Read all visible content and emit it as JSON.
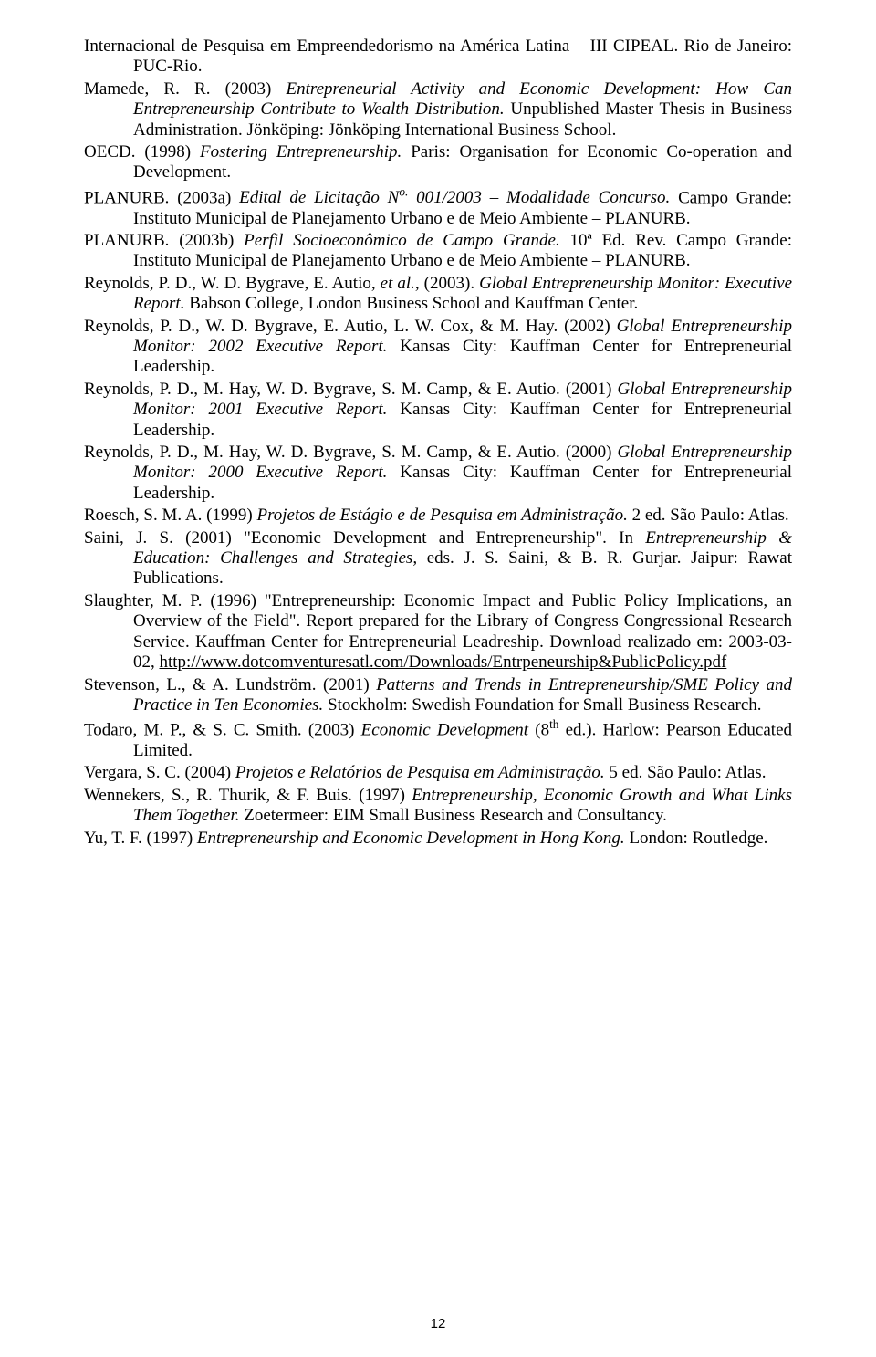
{
  "page_number": "12",
  "font": {
    "body_family": "Times New Roman",
    "body_size_pt": 14,
    "page_num_family": "Arial",
    "page_num_size_pt": 11,
    "color": "#000000",
    "background": "#ffffff"
  },
  "references": [
    {
      "pre": "Internacional de Pesquisa em Empreendedorismo na América Latina – III CIPEAL. Rio de Janeiro: PUC-Rio."
    },
    {
      "pre": "Mamede, R. R. (2003) ",
      "ital": "Entrepreneurial Activity and Economic Development: How Can Entrepreneurship Contribute to Wealth Distribution.",
      "post": " Unpublished Master Thesis in Business Administration. Jönköping: Jönköping International Business School."
    },
    {
      "pre": "OECD. (1998) ",
      "ital": "Fostering Entrepreneurship.",
      "post": " Paris: Organisation for Economic Co-operation and Development."
    },
    {
      "pre": "PLANURB. (2003a) ",
      "ital_pre": "Edital de Licitação N",
      "sup": "o.",
      "ital_post": " 001/2003 – Modalidade Concurso.",
      "post": " Campo Grande: Instituto Municipal de Planejamento Urbano e de Meio Ambiente – PLANURB."
    },
    {
      "pre": "PLANURB. (2003b) ",
      "ital": "Perfil Socioeconômico de Campo Grande.",
      "post": " 10ª Ed. Rev. Campo Grande: Instituto Municipal de Planejamento Urbano e de Meio Ambiente – PLANURB."
    },
    {
      "pre": "Reynolds, P. D., W. D. Bygrave, E. Autio, ",
      "ital": "et al.",
      "mid": ", (2003). ",
      "ital2": "Global Entrepreneurship Monitor: Executive Report.",
      "post": " Babson College, London Business School and Kauffman Center."
    },
    {
      "pre": "Reynolds, P. D., W. D. Bygrave, E. Autio, L. W. Cox, & M. Hay. (2002) ",
      "ital": "Global Entrepreneurship Monitor: 2002 Executive Report.",
      "post": " Kansas City: Kauffman Center for Entrepreneurial Leadership."
    },
    {
      "pre": "Reynolds, P. D., M. Hay, W. D. Bygrave, S. M. Camp, & E. Autio. (2001) ",
      "ital": "Global Entrepreneurship Monitor: 2001 Executive Report.",
      "post": " Kansas City: Kauffman Center for Entrepreneurial Leadership."
    },
    {
      "pre": "Reynolds, P. D., M. Hay, W. D. Bygrave, S. M. Camp, & E. Autio. (2000) ",
      "ital": "Global Entrepreneurship Monitor: 2000 Executive Report.",
      "post": " Kansas City: Kauffman Center for Entrepreneurial Leadership."
    },
    {
      "pre": "Roesch, S. M. A. (1999) ",
      "ital": "Projetos de Estágio e de Pesquisa em Administração.",
      "post": " 2 ed. São Paulo: Atlas."
    },
    {
      "pre": "Saini, J. S. (2001) \"Economic Development and Entrepreneurship\". In ",
      "ital": "Entrepreneurship & Education: Challenges and Strategies,",
      "post": " eds. J. S. Saini, & B. R. Gurjar. Jaipur: Rawat Publications."
    },
    {
      "pre": "Slaughter, M. P. (1996) \"Entrepreneurship: Economic Impact and Public Policy Implications, an Overview of the Field\". Report prepared for the Library of Congress Congressional Research Service. Kauffman Center for Entrepreneurial Leadreship. Download realizado em: 2003-03-02, ",
      "underline": "http://www.dotcomventuresatl.com/Downloads/Entrpeneurship&PublicPolicy.pdf"
    },
    {
      "pre": "Stevenson, L., & A. Lundström. (2001) ",
      "ital": "Patterns and Trends in Entrepreneurship/SME Policy and Practice in Ten Economies.",
      "post": " Stockholm: Swedish Foundation for Small Business Research."
    },
    {
      "pre": "Todaro, M. P., & S. C. Smith. (2003) ",
      "ital": "Economic Development",
      "mid": " (8",
      "sup": "th",
      "post": " ed.). Harlow: Pearson Educated Limited."
    },
    {
      "pre": "Vergara, S. C. (2004) ",
      "ital": "Projetos e Relatórios de Pesquisa em Administração.",
      "post": " 5 ed. São Paulo: Atlas."
    },
    {
      "pre": "Wennekers, S., R. Thurik, & F. Buis. (1997) ",
      "ital": "Entrepreneurship, Economic Growth and What Links Them Together.",
      "post": " Zoetermeer: EIM Small Business Research and Consultancy."
    },
    {
      "pre": "Yu, T. F. (1997) ",
      "ital": "Entrepreneurship and Economic Development in Hong Kong.",
      "post": " London: Routledge."
    }
  ]
}
